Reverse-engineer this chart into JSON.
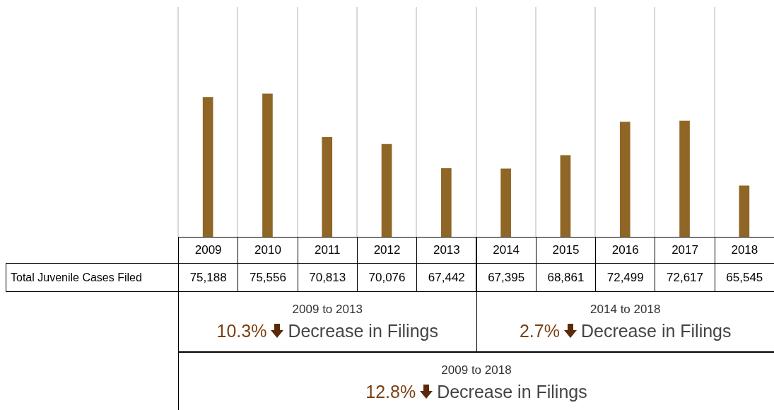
{
  "chart_data": {
    "type": "bar",
    "categories": [
      "2009",
      "2010",
      "2011",
      "2012",
      "2013",
      "2014",
      "2015",
      "2016",
      "2017",
      "2018"
    ],
    "series": [
      {
        "name": "Total Juvenile Cases Filed",
        "color": "#8f6626",
        "values": [
          75188,
          75556,
          70813,
          70076,
          67442,
          67395,
          68861,
          72499,
          72617,
          65545
        ],
        "value_labels": [
          "75,188",
          "75,556",
          "70,813",
          "70,076",
          "67,442",
          "67,395",
          "68,861",
          "72,499",
          "72,617",
          "65,545"
        ]
      }
    ],
    "legend": false,
    "tick_labels": "x",
    "annotations": [
      "2009 to 2013",
      "10.3% Decrease in Filings",
      "2014 to 2018",
      "2.7% Decrease in Filings",
      "2009 to 2018",
      "12.8% Decrease in Filings"
    ]
  }
}
